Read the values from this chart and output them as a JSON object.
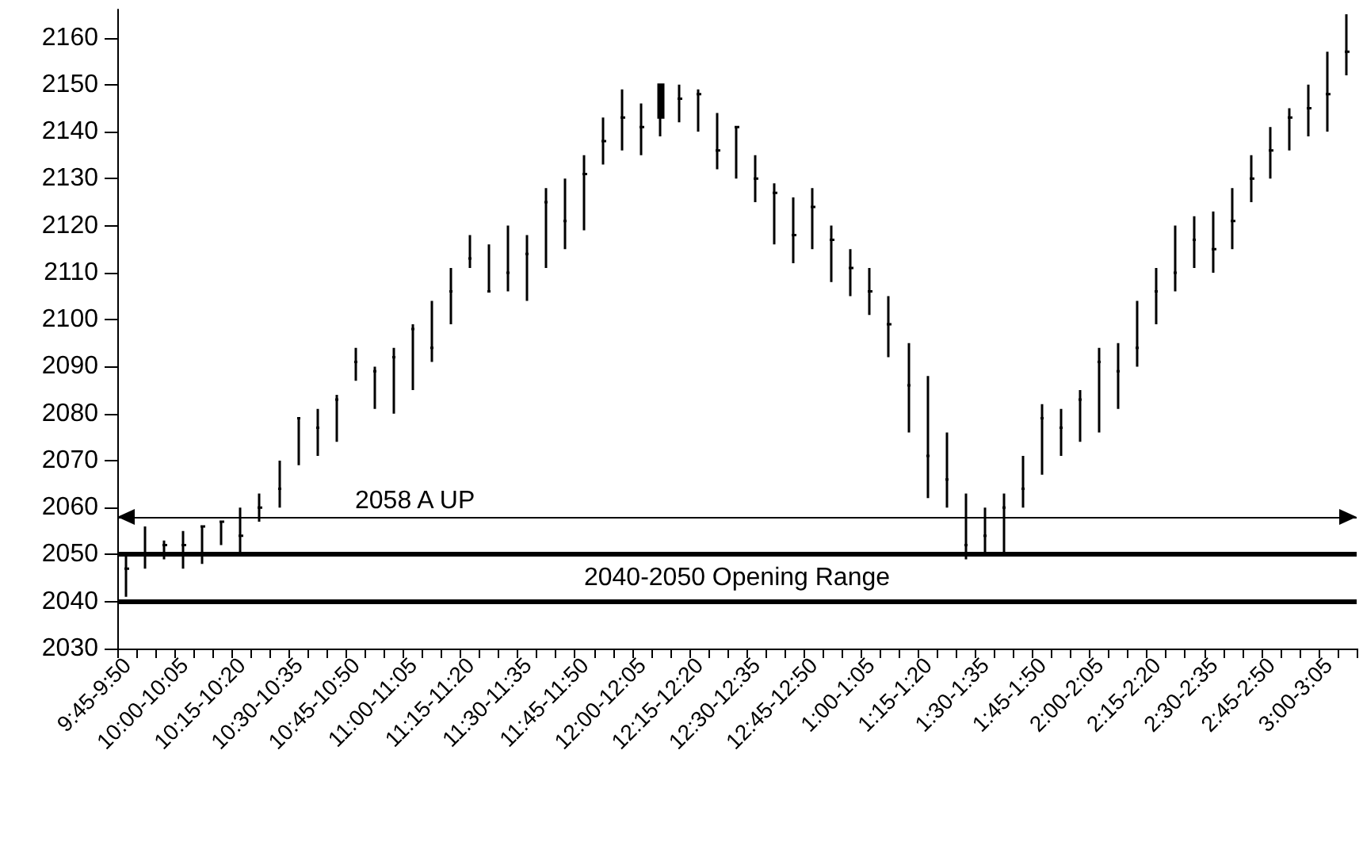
{
  "chart_data": {
    "type": "candlestick",
    "categories": [
      "9:45-9:50",
      null,
      null,
      "10:00-10:05",
      null,
      null,
      "10:15-10:20",
      null,
      null,
      "10:30-10:35",
      null,
      null,
      "10:45-10:50",
      null,
      null,
      "11:00-11:05",
      null,
      null,
      "11:15-11:20",
      null,
      null,
      "11:30-11:35",
      null,
      null,
      "11:45-11:50",
      null,
      null,
      "12:00-12:05",
      null,
      null,
      "12:15-12:20",
      null,
      null,
      "12:30-12:35",
      null,
      null,
      "12:45-12:50",
      null,
      null,
      "1:00-1:05",
      null,
      null,
      "1:15-1:20",
      null,
      null,
      "1:30-1:35",
      null,
      null,
      "1:45-1:50",
      null,
      null,
      "2:00-2:05",
      null,
      null,
      "2:15-2:20",
      null,
      null,
      "2:30-2:35",
      null,
      null,
      "2:45-2:50",
      null,
      null,
      "3:00-3:05",
      null
    ],
    "ohlc": [
      [
        2047,
        2050,
        2041,
        2047
      ],
      [
        2050,
        2056,
        2047,
        2050
      ],
      [
        2052,
        2053,
        2049,
        2052
      ],
      [
        2052,
        2055,
        2047,
        2052
      ],
      [
        2056,
        2056,
        2048,
        2056
      ],
      [
        2057,
        2057,
        2052,
        2057
      ],
      [
        2054,
        2060,
        2050,
        2054
      ],
      [
        2060,
        2063,
        2057,
        2060
      ],
      [
        2064,
        2070,
        2060,
        2064
      ],
      [
        2079,
        2079,
        2069,
        2079
      ],
      [
        2077,
        2081,
        2071,
        2077
      ],
      [
        2083,
        2084,
        2074,
        2083
      ],
      [
        2091,
        2094,
        2087,
        2091
      ],
      [
        2089,
        2090,
        2081,
        2089
      ],
      [
        2092,
        2094,
        2080,
        2092
      ],
      [
        2098,
        2099,
        2085,
        2098
      ],
      [
        2094,
        2104,
        2091,
        2094
      ],
      [
        2106,
        2111,
        2099,
        2106
      ],
      [
        2113,
        2118,
        2111,
        2113
      ],
      [
        2106,
        2116,
        2106,
        2106
      ],
      [
        2110,
        2120,
        2106,
        2110
      ],
      [
        2114,
        2118,
        2104,
        2114
      ],
      [
        2125,
        2128,
        2111,
        2125
      ],
      [
        2121,
        2130,
        2115,
        2121
      ],
      [
        2131,
        2135,
        2119,
        2131
      ],
      [
        2138,
        2143,
        2133,
        2138
      ],
      [
        2143,
        2149,
        2136,
        2143
      ],
      [
        2141,
        2146,
        2135,
        2141
      ],
      [
        2150,
        2150,
        2139,
        2143
      ],
      [
        2147,
        2150,
        2142,
        2147
      ],
      [
        2148,
        2149,
        2140,
        2148
      ],
      [
        2136,
        2144,
        2132,
        2136
      ],
      [
        2141,
        2141,
        2130,
        2141
      ],
      [
        2130,
        2135,
        2125,
        2130
      ],
      [
        2127,
        2129,
        2116,
        2127
      ],
      [
        2118,
        2126,
        2112,
        2118
      ],
      [
        2124,
        2128,
        2115,
        2124
      ],
      [
        2117,
        2120,
        2108,
        2117
      ],
      [
        2111,
        2115,
        2105,
        2111
      ],
      [
        2106,
        2111,
        2101,
        2106
      ],
      [
        2099,
        2105,
        2092,
        2099
      ],
      [
        2086,
        2095,
        2076,
        2086
      ],
      [
        2071,
        2088,
        2062,
        2071
      ],
      [
        2066,
        2076,
        2060,
        2066
      ],
      [
        2052,
        2063,
        2049,
        2052
      ],
      [
        2054,
        2060,
        2050,
        2054
      ],
      [
        2060,
        2063,
        2050,
        2060
      ],
      [
        2064,
        2071,
        2060,
        2064
      ],
      [
        2079,
        2082,
        2067,
        2079
      ],
      [
        2077,
        2081,
        2071,
        2077
      ],
      [
        2083,
        2085,
        2074,
        2083
      ],
      [
        2091,
        2094,
        2076,
        2091
      ],
      [
        2089,
        2095,
        2081,
        2089
      ],
      [
        2094,
        2104,
        2090,
        2094
      ],
      [
        2106,
        2111,
        2099,
        2106
      ],
      [
        2110,
        2120,
        2106,
        2110
      ],
      [
        2117,
        2122,
        2111,
        2117
      ],
      [
        2115,
        2123,
        2110,
        2115
      ],
      [
        2121,
        2128,
        2115,
        2121
      ],
      [
        2130,
        2135,
        2125,
        2130
      ],
      [
        2136,
        2141,
        2130,
        2136
      ],
      [
        2143,
        2145,
        2136,
        2143
      ],
      [
        2145,
        2150,
        2139,
        2145
      ],
      [
        2148,
        2157,
        2140,
        2148
      ],
      [
        2157,
        2165,
        2152,
        2157
      ]
    ],
    "ylim": [
      2030,
      2166
    ],
    "yticks": [
      2030,
      2040,
      2050,
      2060,
      2070,
      2080,
      2090,
      2100,
      2110,
      2120,
      2130,
      2140,
      2150,
      2160
    ],
    "color": "#000000",
    "grid": false,
    "ref_lines": [
      {
        "axis": "y",
        "value": 2058,
        "label": "2058 A UP"
      },
      {
        "axis": "y",
        "value": 2050,
        "label": null
      },
      {
        "axis": "y",
        "value": 2040,
        "label": null
      }
    ],
    "annotations": [
      "2040-2050 Opening Range"
    ]
  }
}
